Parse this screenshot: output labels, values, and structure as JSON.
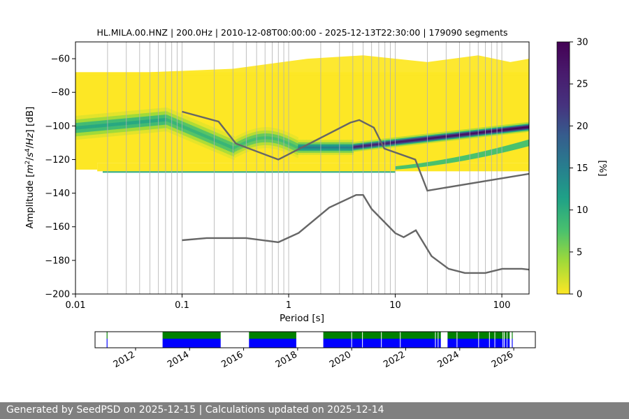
{
  "chart_data": [
    {
      "type": "heatmap",
      "title": "HL.MILA.00.HNZ | 200.0Hz | 2010-12-08T00:00:00 - 2025-12-13T22:30:00 | 179090 segments",
      "xlabel": "Period [s]",
      "ylabel": "Amplitude [$m^2/s^4/Hz$] [dB]",
      "x_scale": "log",
      "xlim": [
        0.01,
        180
      ],
      "ylim": [
        -200,
        -50
      ],
      "x_ticks": [
        "0.01",
        "0.1",
        "1",
        "10",
        "100"
      ],
      "y_ticks": [
        "−200",
        "−180",
        "−160",
        "−140",
        "−120",
        "−100",
        "−80",
        "−60"
      ],
      "grid": "vertical minor lines on x",
      "colorbar": {
        "label": "[%]",
        "min": 0,
        "max": 30,
        "ticks": [
          "0",
          "5",
          "10",
          "15",
          "20",
          "25",
          "30"
        ],
        "colormap": "viridis_r"
      },
      "noise_model_high": {
        "period": [
          0.1,
          0.22,
          0.32,
          0.8,
          3.8,
          4.6,
          6.3,
          7.9,
          15.4,
          20,
          180
        ],
        "db": [
          -91.5,
          -97.4,
          -110.5,
          -120,
          -98,
          -96.5,
          -101,
          -113.5,
          -120,
          -138.5,
          -128.5
        ]
      },
      "noise_model_low": {
        "period": [
          0.1,
          0.17,
          0.4,
          0.8,
          1.24,
          2.4,
          4.3,
          5,
          6,
          10,
          12,
          15.6,
          21.9,
          31.6,
          45,
          70,
          101,
          154,
          180
        ],
        "db": [
          -168,
          -166.7,
          -166.7,
          -169.2,
          -163.7,
          -148.6,
          -141.1,
          -141.1,
          -149.4,
          -163.8,
          -166.2,
          -162.1,
          -177.5,
          -185,
          -187.5,
          -187.5,
          -185,
          -185,
          -185.5
        ]
      },
      "colors": {
        "noise_model": "#666666",
        "background_band": "#fde725"
      }
    },
    {
      "type": "timeline",
      "x_ticks": [
        "2012",
        "2014",
        "2016",
        "2018",
        "2020",
        "2022",
        "2024",
        "2026"
      ],
      "year_range": [
        2010.5,
        2026.8
      ],
      "data_spans": [
        [
          2010.93,
          2010.96
        ],
        [
          2013.0,
          2015.15
        ],
        [
          2016.2,
          2017.95
        ],
        [
          2018.95,
          2023.3
        ],
        [
          2023.55,
          2025.85
        ],
        [
          2025.93,
          2025.96
        ]
      ],
      "gaps": [
        2020.0,
        2020.4,
        2021.1,
        2021.8,
        2023.1,
        2023.2,
        2023.9,
        2024.7,
        2025.1,
        2025.3,
        2025.6,
        2025.65,
        2025.75
      ],
      "colors": {
        "available": "#0000ff",
        "gap_flag": "#008000"
      }
    }
  ],
  "footer": {
    "text": "Generated by SeedPSD on 2025-12-15 | Calculations updated on 2025-12-14"
  }
}
